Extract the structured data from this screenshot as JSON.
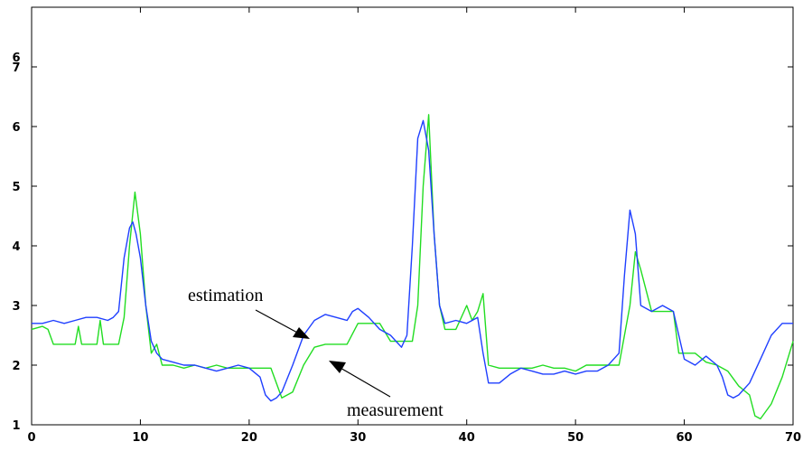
{
  "chart_data": {
    "type": "line",
    "title": "",
    "xlabel": "",
    "ylabel": "",
    "xlim": [
      0,
      70
    ],
    "ylim": [
      1,
      8
    ],
    "xticks": [
      0,
      10,
      20,
      30,
      40,
      50,
      60,
      70
    ],
    "yticks": [
      1,
      2,
      3,
      4,
      5,
      6,
      7
    ],
    "ytick_labels": [
      "1",
      "2",
      "3",
      "4",
      "5",
      "6",
      "7"
    ],
    "top_axis_label": "6",
    "grid": false,
    "legend": "none",
    "colors": {
      "estimation": "#1f3fff",
      "measurement": "#22dd22"
    },
    "annotations": [
      {
        "text": "estimation",
        "points_to": [
          26.5,
          2.75
        ]
      },
      {
        "text": "measurement",
        "points_to": [
          28.0,
          2.25
        ]
      }
    ],
    "series": [
      {
        "id": "estimation",
        "x": [
          0,
          1,
          2,
          3,
          4,
          5,
          6,
          7,
          7.5,
          8,
          8.5,
          9,
          9.3,
          9.6,
          10,
          10.5,
          11,
          11.5,
          12,
          13,
          14,
          15,
          16,
          17,
          18,
          19,
          20,
          21,
          21.5,
          22,
          22.5,
          23,
          24,
          25,
          26,
          27,
          28,
          29,
          29.5,
          30,
          31,
          32,
          33,
          34,
          34.5,
          35,
          35.5,
          36,
          36.5,
          37,
          37.5,
          38,
          39,
          40,
          41,
          41.5,
          42,
          43,
          44,
          45,
          46,
          47,
          48,
          49,
          50,
          51,
          52,
          53,
          54,
          54.5,
          55,
          55.5,
          56,
          57,
          58,
          59,
          59.5,
          60,
          61,
          62,
          63,
          63.5,
          64,
          64.5,
          65,
          66,
          67,
          68,
          69,
          70
        ],
        "y": [
          2.7,
          2.7,
          2.75,
          2.7,
          2.75,
          2.8,
          2.8,
          2.75,
          2.8,
          2.9,
          3.8,
          4.3,
          4.4,
          4.2,
          3.8,
          3.0,
          2.4,
          2.2,
          2.1,
          2.05,
          2.0,
          2.0,
          1.95,
          1.9,
          1.95,
          2.0,
          1.95,
          1.8,
          1.5,
          1.4,
          1.45,
          1.55,
          2.0,
          2.5,
          2.75,
          2.85,
          2.8,
          2.75,
          2.9,
          2.95,
          2.8,
          2.6,
          2.5,
          2.3,
          2.5,
          4.0,
          5.8,
          6.1,
          5.6,
          4.2,
          3.0,
          2.7,
          2.75,
          2.7,
          2.8,
          2.2,
          1.7,
          1.7,
          1.85,
          1.95,
          1.9,
          1.85,
          1.85,
          1.9,
          1.85,
          1.9,
          1.9,
          2.0,
          2.2,
          3.5,
          4.6,
          4.2,
          3.0,
          2.9,
          3.0,
          2.9,
          2.5,
          2.1,
          2.0,
          2.15,
          2.0,
          1.8,
          1.5,
          1.45,
          1.5,
          1.7,
          2.1,
          2.5,
          2.7,
          2.7
        ]
      },
      {
        "id": "measurement",
        "x": [
          0,
          1,
          1.5,
          2,
          3,
          4,
          4.3,
          4.6,
          5,
          6,
          6.3,
          6.6,
          7,
          8,
          8.5,
          9,
          9.5,
          10,
          10.5,
          11,
          11.5,
          12,
          13,
          14,
          15,
          16,
          17,
          18,
          19,
          20,
          21,
          22,
          23,
          24,
          25,
          26,
          27,
          28,
          29,
          30,
          31,
          32,
          33,
          34,
          35,
          35.5,
          36,
          36.5,
          37,
          37.5,
          38,
          39,
          40,
          40.5,
          41,
          41.5,
          42,
          43,
          44,
          45,
          46,
          47,
          48,
          49,
          50,
          51,
          52,
          53,
          54,
          55,
          55.5,
          56,
          57,
          58,
          59,
          59.5,
          60,
          61,
          62,
          63,
          64,
          65,
          66,
          66.5,
          67,
          68,
          69,
          70
        ],
        "y": [
          2.6,
          2.65,
          2.6,
          2.35,
          2.35,
          2.35,
          2.65,
          2.35,
          2.35,
          2.35,
          2.75,
          2.35,
          2.35,
          2.35,
          2.8,
          4.0,
          4.9,
          4.2,
          3.0,
          2.2,
          2.35,
          2.0,
          2.0,
          1.95,
          2.0,
          1.95,
          2.0,
          1.95,
          1.95,
          1.95,
          1.95,
          1.95,
          1.45,
          1.55,
          2.0,
          2.3,
          2.35,
          2.35,
          2.35,
          2.7,
          2.7,
          2.7,
          2.4,
          2.4,
          2.4,
          3.0,
          5.0,
          6.2,
          4.2,
          3.0,
          2.6,
          2.6,
          3.0,
          2.75,
          2.9,
          3.2,
          2.0,
          1.95,
          1.95,
          1.95,
          1.95,
          2.0,
          1.95,
          1.95,
          1.9,
          2.0,
          2.0,
          2.0,
          2.0,
          3.0,
          3.9,
          3.6,
          2.9,
          2.9,
          2.9,
          2.2,
          2.2,
          2.2,
          2.05,
          2.0,
          1.9,
          1.65,
          1.5,
          1.15,
          1.1,
          1.35,
          1.8,
          2.4
        ]
      }
    ]
  }
}
